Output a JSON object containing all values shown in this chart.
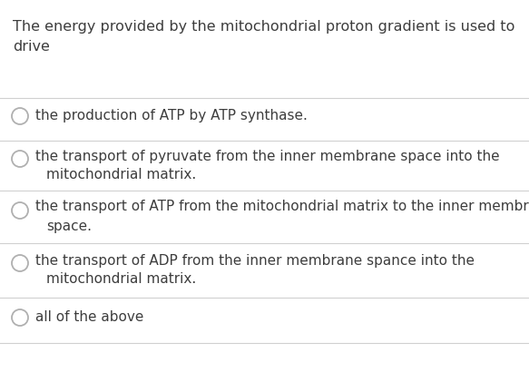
{
  "background_color": "#ffffff",
  "question_line1": "The energy provided by the mitochondrial proton gradient is used to",
  "question_line2": "drive",
  "question_fontsize": 11.5,
  "question_color": "#3d3d3d",
  "options": [
    [
      "the production of ATP by ATP synthase.",
      ""
    ],
    [
      "the transport of pyruvate from the inner membrane space into the",
      "mitochondrial matrix."
    ],
    [
      "the transport of ATP from the mitochondrial matrix to the inner membrane",
      "space."
    ],
    [
      "the transport of ADP from the inner membrane spance into the",
      "mitochondrial matrix."
    ],
    [
      "all of the above",
      ""
    ]
  ],
  "option_fontsize": 11.0,
  "option_color": "#3d3d3d",
  "circle_color": "#b0b0b0",
  "line_color": "#d0d0d0",
  "fig_width": 5.83,
  "fig_height": 4.21,
  "dpi": 100
}
